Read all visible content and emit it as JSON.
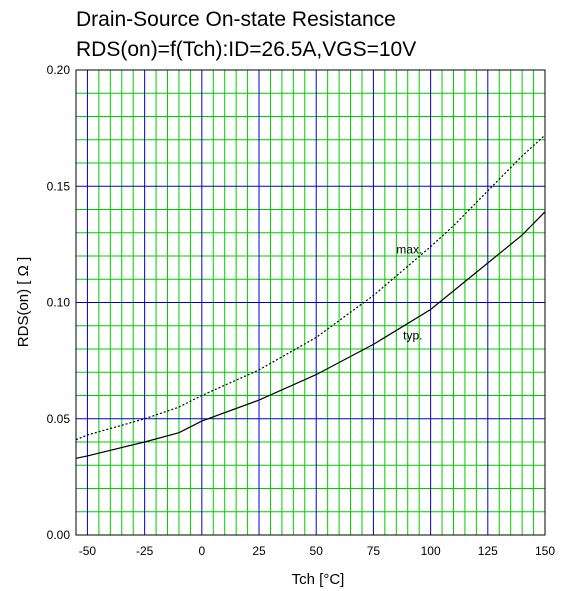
{
  "chart_data": {
    "type": "line",
    "title": [
      "Drain-Source On-state Resistance",
      "RDS(on)=f(Tch):ID=26.5A,VGS=10V"
    ],
    "xlabel": "Tch [°C]",
    "ylabel": "RDS(on) [ Ω ]",
    "xlim": [
      -55,
      150
    ],
    "ylim": [
      0.0,
      0.2
    ],
    "x_ticks": [
      -50,
      -25,
      0,
      25,
      50,
      75,
      100,
      125,
      150
    ],
    "y_ticks": [
      0.0,
      0.05,
      0.1,
      0.15,
      0.2
    ],
    "y_tick_labels": [
      "0.00",
      "0.05",
      "0.10",
      "0.15",
      "0.20"
    ],
    "grid": {
      "major": true,
      "minor": true,
      "major_color": "#0000cc",
      "minor_color": "#00cc00"
    },
    "series": [
      {
        "name": "max.",
        "style": "dashed",
        "x": [
          -55,
          -50,
          -25,
          -10,
          0,
          25,
          50,
          75,
          100,
          110,
          125,
          140,
          150
        ],
        "y": [
          0.041,
          0.043,
          0.05,
          0.055,
          0.06,
          0.071,
          0.085,
          0.103,
          0.124,
          0.133,
          0.148,
          0.163,
          0.172
        ]
      },
      {
        "name": "typ.",
        "style": "solid",
        "x": [
          -55,
          -50,
          -25,
          -10,
          0,
          25,
          50,
          75,
          100,
          110,
          125,
          140,
          150
        ],
        "y": [
          0.033,
          0.034,
          0.04,
          0.044,
          0.049,
          0.058,
          0.069,
          0.082,
          0.097,
          0.105,
          0.117,
          0.129,
          0.139
        ]
      }
    ],
    "annotations": [
      {
        "text": "max.",
        "x": 85,
        "y": 0.121
      },
      {
        "text": "typ.",
        "x": 88,
        "y": 0.084
      }
    ]
  }
}
